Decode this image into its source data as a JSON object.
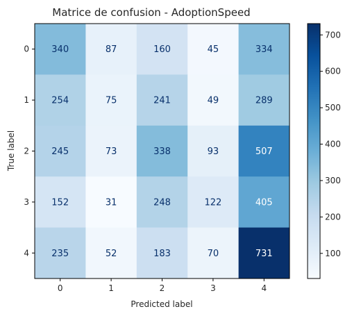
{
  "chart_data": {
    "type": "heatmap",
    "title": "Matrice de confusion - AdoptionSpeed",
    "xlabel": "Predicted label",
    "ylabel": "True label",
    "x_categories": [
      "0",
      "1",
      "2",
      "3",
      "4"
    ],
    "y_categories": [
      "0",
      "1",
      "2",
      "3",
      "4"
    ],
    "values": [
      [
        340,
        87,
        160,
        45,
        334
      ],
      [
        254,
        75,
        241,
        49,
        289
      ],
      [
        245,
        73,
        338,
        93,
        507
      ],
      [
        152,
        31,
        248,
        122,
        405
      ],
      [
        235,
        52,
        183,
        70,
        731
      ]
    ],
    "colormap": "Blues",
    "colorbar": {
      "ticks": [
        "100",
        "200",
        "300",
        "400",
        "500",
        "600",
        "700"
      ],
      "range": [
        31,
        731
      ]
    },
    "grid": false
  }
}
